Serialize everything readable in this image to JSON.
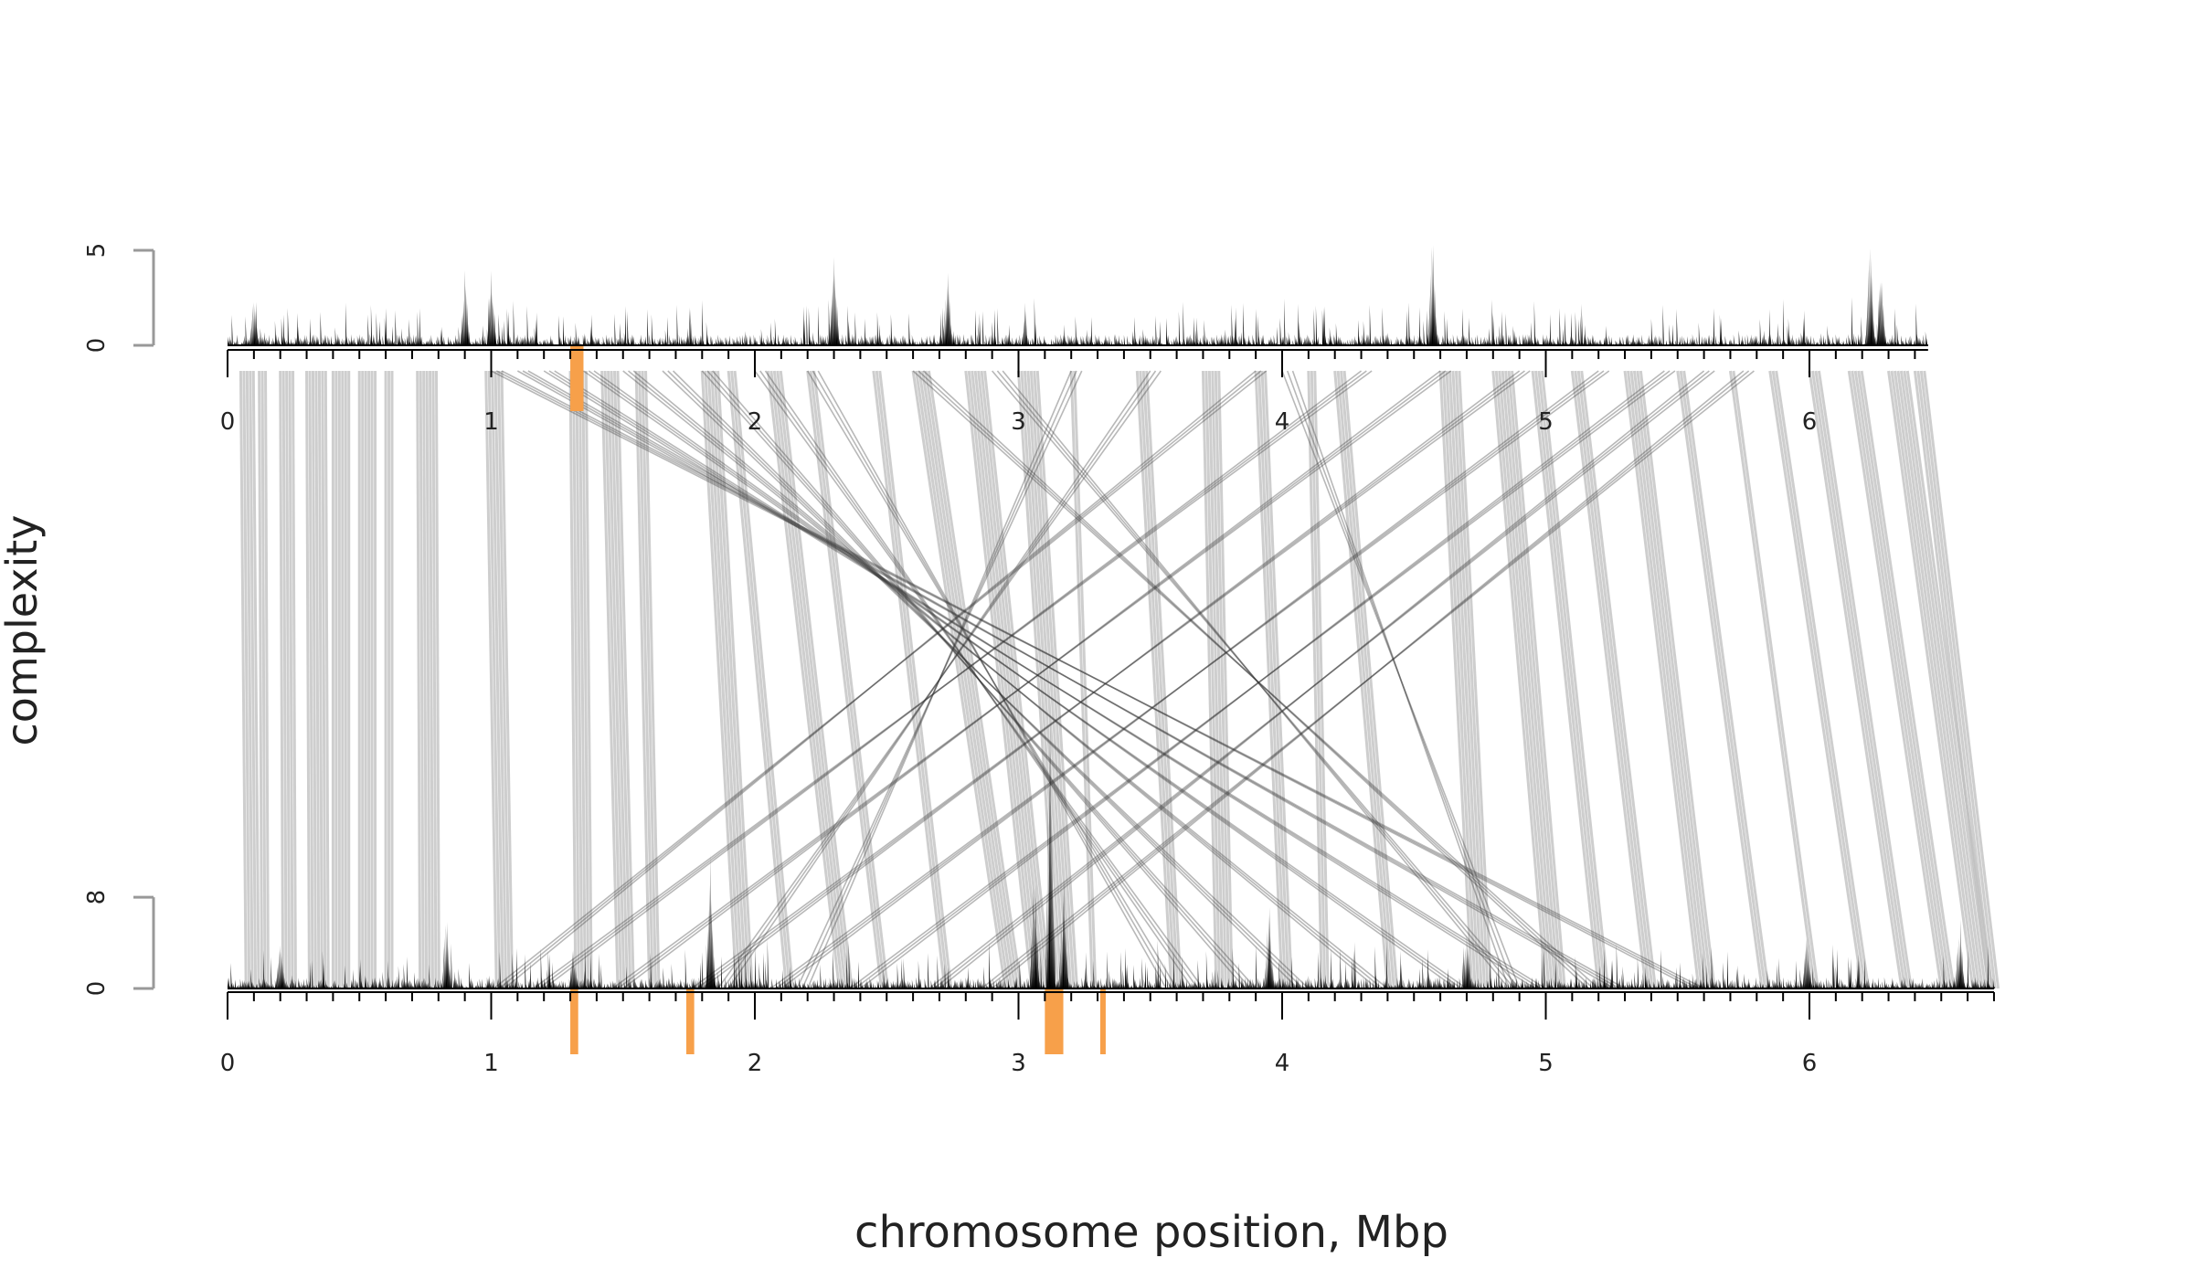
{
  "chart_data": {
    "type": "synteny-area",
    "xlabel": "chromosome position, Mbp",
    "ylabel": "complexity",
    "colors": {
      "profile": "#000000",
      "link": "#bdbdbd",
      "link_dark": "#333333",
      "highlight": "#f7a04a",
      "axis": "#999999"
    },
    "top_track": {
      "xlim": [
        0,
        6.45
      ],
      "ylim": [
        0,
        5
      ],
      "yticks": [
        "0",
        "5"
      ],
      "xticks": [
        "0",
        "1",
        "2",
        "3",
        "4",
        "5",
        "6"
      ],
      "minor_tick_step": 0.1,
      "peaks": [
        [
          0.1,
          2.6
        ],
        [
          0.9,
          4.1
        ],
        [
          1.0,
          4.3
        ],
        [
          2.3,
          5.9
        ],
        [
          2.73,
          4.9
        ],
        [
          4.57,
          6.2
        ],
        [
          6.23,
          6.0
        ],
        [
          6.27,
          4.8
        ]
      ],
      "highlights": [
        [
          1.3,
          1.35
        ]
      ]
    },
    "bottom_track": {
      "xlim": [
        0,
        6.7
      ],
      "ylim": [
        0,
        8
      ],
      "yticks": [
        "0",
        "8"
      ],
      "xticks": [
        "0",
        "1",
        "2",
        "3",
        "4",
        "5",
        "6"
      ],
      "minor_tick_step": 0.1,
      "peaks": [
        [
          0.2,
          3.0
        ],
        [
          0.83,
          4.0
        ],
        [
          1.31,
          2.4
        ],
        [
          1.83,
          8.1
        ],
        [
          3.12,
          16.5
        ],
        [
          3.06,
          7.2
        ],
        [
          3.17,
          6.5
        ],
        [
          3.95,
          4.8
        ],
        [
          4.7,
          3.6
        ],
        [
          5.99,
          3.6
        ],
        [
          6.57,
          4.2
        ]
      ],
      "highlights": [
        [
          1.3,
          1.33
        ],
        [
          1.74,
          1.77
        ],
        [
          3.1,
          3.17
        ],
        [
          3.31,
          3.33
        ]
      ]
    },
    "links": {
      "colinear_pairs": [
        [
          0.05,
          0.07
        ],
        [
          0.12,
          0.13
        ],
        [
          0.2,
          0.21
        ],
        [
          0.3,
          0.31
        ],
        [
          0.4,
          0.4
        ],
        [
          0.5,
          0.5
        ],
        [
          0.6,
          0.6
        ],
        [
          0.72,
          0.73
        ],
        [
          0.98,
          1.02
        ],
        [
          1.3,
          1.32
        ],
        [
          1.42,
          1.48
        ],
        [
          1.55,
          1.6
        ],
        [
          1.8,
          1.93
        ],
        [
          1.9,
          2.12
        ],
        [
          2.05,
          2.32
        ],
        [
          2.2,
          2.48
        ],
        [
          2.45,
          2.72
        ],
        [
          2.6,
          2.95
        ],
        [
          2.8,
          3.05
        ],
        [
          3.0,
          3.15
        ],
        [
          3.2,
          3.28
        ],
        [
          3.45,
          3.58
        ],
        [
          3.7,
          3.75
        ],
        [
          3.9,
          4.0
        ],
        [
          4.1,
          4.15
        ],
        [
          4.2,
          4.4
        ],
        [
          4.6,
          4.72
        ],
        [
          4.8,
          5.0
        ],
        [
          4.95,
          5.2
        ],
        [
          5.1,
          5.38
        ],
        [
          5.3,
          5.58
        ],
        [
          5.5,
          5.82
        ],
        [
          5.7,
          6.02
        ],
        [
          5.85,
          6.2
        ],
        [
          6.0,
          6.35
        ],
        [
          6.15,
          6.5
        ],
        [
          6.3,
          6.62
        ],
        [
          6.4,
          6.68
        ]
      ],
      "inverted_pairs": [
        [
          1.0,
          5.6
        ],
        [
          1.1,
          5.3
        ],
        [
          1.2,
          5.0
        ],
        [
          1.35,
          4.7
        ],
        [
          1.5,
          4.4
        ],
        [
          1.65,
          4.1
        ],
        [
          1.8,
          3.9
        ],
        [
          2.0,
          3.7
        ],
        [
          2.2,
          3.6
        ],
        [
          4.3,
          1.2
        ],
        [
          4.6,
          1.5
        ],
        [
          4.9,
          1.8
        ],
        [
          5.2,
          2.1
        ],
        [
          5.45,
          2.4
        ],
        [
          5.6,
          2.7
        ],
        [
          5.75,
          2.9
        ],
        [
          3.2,
          2.2
        ],
        [
          3.5,
          1.9
        ],
        [
          2.9,
          4.9
        ],
        [
          2.6,
          5.2
        ],
        [
          3.9,
          1.05
        ],
        [
          4.0,
          4.9
        ]
      ]
    }
  }
}
